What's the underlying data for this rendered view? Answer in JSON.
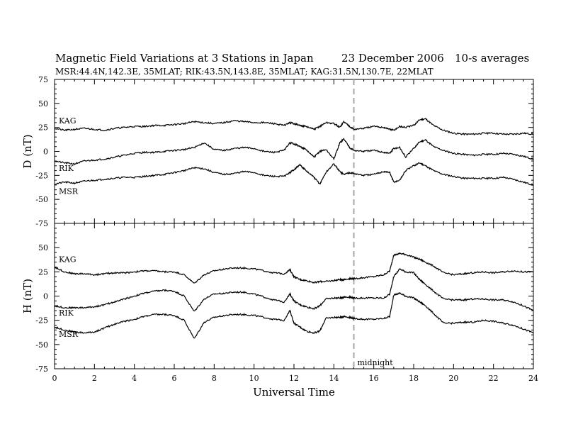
{
  "header": {
    "title": "Magnetic Field Variations at 3 Stations in Japan",
    "date": "23 December 2006",
    "averaging": "10-s averages",
    "stations_info": "MSR:44.4N,142.3E, 35MLAT;   RIK:43.5N,143.8E, 35MLAT;   KAG:31.5N,130.7E, 22MLAT"
  },
  "colors": {
    "trace": "#000000",
    "midline": "#a8a8a8",
    "frame": "#000000"
  },
  "chart_data": [
    {
      "type": "line",
      "panel": "D",
      "ylabel": "D (nT)",
      "xlabel": "",
      "xlim": [
        0,
        24
      ],
      "ylim": [
        -75,
        75
      ],
      "yticks": [
        75,
        50,
        25,
        0,
        -25,
        -50,
        -75
      ],
      "x": [
        0,
        0.5,
        1,
        1.5,
        2,
        2.5,
        3,
        3.5,
        4,
        4.5,
        5,
        5.5,
        6,
        6.5,
        7,
        7.5,
        8,
        8.5,
        9,
        9.5,
        10,
        10.5,
        11,
        11.5,
        11.8,
        12,
        12.3,
        12.6,
        13,
        13.3,
        13.6,
        14,
        14.3,
        14.5,
        14.8,
        15,
        15.5,
        16,
        16.5,
        16.8,
        17,
        17.3,
        17.6,
        18,
        18.3,
        18.6,
        19,
        19.5,
        20,
        20.5,
        21,
        21.5,
        22,
        22.5,
        23,
        23.5,
        24
      ],
      "series": [
        {
          "name": "KAG",
          "values": [
            24,
            22,
            23,
            24,
            23,
            22,
            24,
            25,
            26,
            26,
            27,
            27,
            28,
            29,
            31,
            30,
            29,
            30,
            32,
            31,
            30,
            30,
            29,
            27,
            30,
            29,
            27,
            26,
            23,
            26,
            30,
            29,
            25,
            31,
            26,
            23,
            24,
            26,
            25,
            23,
            22,
            26,
            25,
            27,
            33,
            34,
            27,
            22,
            19,
            18,
            18,
            19,
            19,
            18,
            18,
            19,
            18
          ]
        },
        {
          "name": "RIK",
          "values": [
            -10,
            -12,
            -13,
            -10,
            -9,
            -8,
            -6,
            -4,
            -2,
            -1,
            -1,
            0,
            1,
            2,
            4,
            9,
            2,
            1,
            3,
            4,
            3,
            0,
            -1,
            1,
            9,
            8,
            5,
            2,
            -6,
            0,
            2,
            -8,
            9,
            13,
            4,
            1,
            0,
            1,
            -1,
            -2,
            3,
            4,
            -6,
            3,
            10,
            12,
            5,
            1,
            -2,
            -3,
            -4,
            -3,
            -3,
            -2,
            -3,
            -5,
            -8
          ]
        },
        {
          "name": "MSR",
          "values": [
            -34,
            -32,
            -33,
            -31,
            -30,
            -29,
            -28,
            -27,
            -27,
            -26,
            -25,
            -24,
            -22,
            -20,
            -17,
            -18,
            -22,
            -24,
            -23,
            -21,
            -22,
            -25,
            -26,
            -26,
            -22,
            -19,
            -14,
            -20,
            -27,
            -34,
            -22,
            -13,
            -21,
            -24,
            -22,
            -23,
            -25,
            -24,
            -21,
            -22,
            -32,
            -30,
            -20,
            -15,
            -12,
            -15,
            -20,
            -24,
            -26,
            -28,
            -28,
            -28,
            -28,
            -27,
            -29,
            -32,
            -35
          ]
        }
      ]
    },
    {
      "type": "line",
      "panel": "H",
      "ylabel": "H (nT)",
      "xlabel": "Universal Time",
      "xlim": [
        0,
        24
      ],
      "ylim": [
        -75,
        75
      ],
      "yticks": [
        50,
        25,
        0,
        -25,
        -50,
        -75
      ],
      "xticks": [
        0,
        2,
        4,
        6,
        8,
        10,
        12,
        14,
        16,
        18,
        20,
        22,
        24
      ],
      "annotation": "midnight",
      "midnight_x": 15,
      "x": [
        0,
        0.5,
        1,
        1.5,
        2,
        2.5,
        3,
        3.5,
        4,
        4.5,
        5,
        5.5,
        6,
        6.5,
        7,
        7.5,
        8,
        8.5,
        9,
        9.5,
        10,
        10.5,
        11,
        11.5,
        11.8,
        12,
        12.3,
        12.6,
        13,
        13.3,
        13.6,
        14,
        14.3,
        14.5,
        14.8,
        15,
        15.5,
        16,
        16.5,
        16.8,
        17,
        17.3,
        17.6,
        18,
        18.3,
        18.6,
        19,
        19.5,
        20,
        20.5,
        21,
        21.5,
        22,
        22.5,
        23,
        23.5,
        24
      ],
      "series": [
        {
          "name": "KAG",
          "values": [
            30,
            25,
            23,
            23,
            22,
            23,
            24,
            24,
            25,
            26,
            26,
            25,
            25,
            22,
            13,
            22,
            26,
            28,
            29,
            29,
            28,
            26,
            24,
            23,
            27,
            20,
            17,
            16,
            14,
            15,
            15,
            16,
            17,
            17,
            18,
            18,
            19,
            20,
            22,
            26,
            42,
            44,
            43,
            40,
            38,
            35,
            31,
            24,
            22,
            23,
            24,
            25,
            24,
            25,
            26,
            25,
            25
          ]
        },
        {
          "name": "RIK",
          "values": [
            -10,
            -12,
            -12,
            -12,
            -11,
            -9,
            -6,
            -3,
            0,
            3,
            5,
            6,
            5,
            0,
            -16,
            -3,
            2,
            3,
            4,
            4,
            2,
            -1,
            -4,
            -6,
            2,
            -5,
            -9,
            -11,
            -13,
            -10,
            -3,
            -2,
            -2,
            -1,
            -1,
            -2,
            -2,
            -2,
            -2,
            2,
            20,
            28,
            25,
            24,
            17,
            12,
            5,
            -3,
            -4,
            -4,
            -3,
            -3,
            -4,
            -4,
            -6,
            -10,
            -15
          ]
        },
        {
          "name": "MSR",
          "values": [
            -32,
            -35,
            -37,
            -38,
            -37,
            -33,
            -29,
            -26,
            -24,
            -21,
            -19,
            -19,
            -20,
            -25,
            -44,
            -27,
            -22,
            -20,
            -19,
            -19,
            -20,
            -22,
            -24,
            -25,
            -15,
            -28,
            -32,
            -36,
            -38,
            -36,
            -23,
            -22,
            -22,
            -21,
            -22,
            -23,
            -24,
            -24,
            -23,
            -21,
            1,
            3,
            0,
            -2,
            -6,
            -10,
            -18,
            -28,
            -28,
            -27,
            -27,
            -25,
            -26,
            -28,
            -30,
            -34,
            -38
          ]
        }
      ]
    }
  ]
}
